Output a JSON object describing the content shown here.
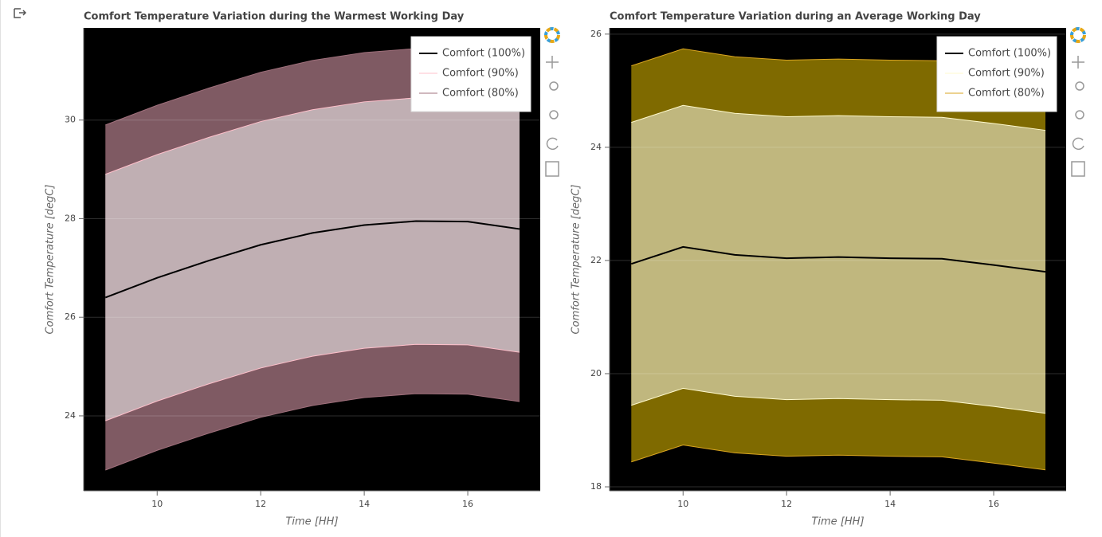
{
  "chart_data": [
    {
      "type": "band-line",
      "title": "Comfort Temperature Variation during the Warmest Working Day",
      "x_label": "Time [HH]",
      "y_label": "Comfort Temperature [degC]",
      "x": [
        9,
        10,
        11,
        12,
        13,
        14,
        15,
        16,
        17
      ],
      "series": [
        {
          "name": "Comfort (100%)",
          "color": "#000000",
          "values": [
            26.4,
            26.8,
            27.15,
            27.47,
            27.71,
            27.87,
            27.95,
            27.94,
            27.79
          ]
        },
        {
          "name": "Comfort (90%)",
          "color": "#ffc0cb",
          "fill": "#c0afb3",
          "upper": [
            28.9,
            29.3,
            29.65,
            29.97,
            30.21,
            30.37,
            30.45,
            30.44,
            30.29
          ],
          "lower": [
            23.9,
            24.3,
            24.65,
            24.97,
            25.21,
            25.37,
            25.45,
            25.44,
            25.29
          ]
        },
        {
          "name": "Comfort (80%)",
          "color": "#a0707c",
          "fill": "#7f5a63",
          "upper": [
            29.9,
            30.3,
            30.65,
            30.97,
            31.21,
            31.37,
            31.45,
            31.44,
            31.29
          ],
          "lower": [
            22.9,
            23.3,
            23.65,
            23.97,
            24.21,
            24.37,
            24.45,
            24.44,
            24.29
          ]
        }
      ],
      "xlim": [
        8.58,
        17.4
      ],
      "xticks": [
        10,
        12,
        14,
        16
      ],
      "ylim": [
        22.48,
        31.87
      ],
      "yticks": [
        24,
        26,
        28,
        30
      ],
      "background": "#000000",
      "grid": true,
      "legend": "top_right"
    },
    {
      "type": "band-line",
      "title": "Comfort Temperature Variation during an Average Working Day",
      "x_label": "Time [HH]",
      "y_label": "Comfort Temperature [degC]",
      "x": [
        9,
        10,
        11,
        12,
        13,
        14,
        15,
        16,
        17
      ],
      "series": [
        {
          "name": "Comfort (100%)",
          "color": "#000000",
          "values": [
            21.94,
            22.24,
            22.1,
            22.04,
            22.06,
            22.04,
            22.03,
            21.92,
            21.8
          ]
        },
        {
          "name": "Comfort (90%)",
          "color": "#fffacd",
          "fill": "#c0b77e",
          "upper": [
            24.44,
            24.74,
            24.6,
            24.54,
            24.56,
            24.54,
            24.53,
            24.42,
            24.3
          ],
          "lower": [
            19.44,
            19.74,
            19.6,
            19.54,
            19.56,
            19.54,
            19.53,
            19.42,
            19.3
          ]
        },
        {
          "name": "Comfort (80%)",
          "color": "#daa520",
          "fill": "#7f6a00",
          "upper": [
            25.44,
            25.74,
            25.6,
            25.54,
            25.56,
            25.54,
            25.53,
            25.42,
            25.3
          ],
          "lower": [
            18.44,
            18.74,
            18.6,
            18.54,
            18.56,
            18.54,
            18.53,
            18.42,
            18.3
          ]
        }
      ],
      "xlim": [
        8.58,
        17.4
      ],
      "xticks": [
        10,
        12,
        14,
        16
      ],
      "ylim": [
        17.93,
        26.11
      ],
      "yticks": [
        18,
        20,
        22,
        24,
        26
      ],
      "background": "#000000",
      "grid": true,
      "legend": "top_right"
    }
  ]
}
